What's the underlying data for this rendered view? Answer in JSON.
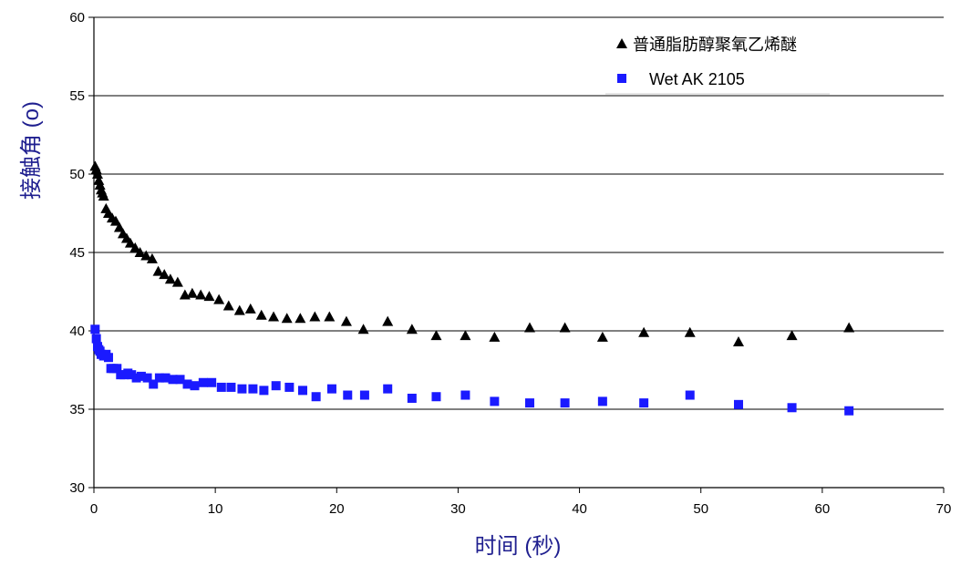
{
  "chart_data": {
    "type": "scatter",
    "title": "",
    "xlabel": "时间 (秒)",
    "ylabel": "接触角 (o)",
    "xlim": [
      0,
      70
    ],
    "ylim": [
      30,
      60
    ],
    "x_ticks": [
      "0",
      "10",
      "20",
      "30",
      "40",
      "50",
      "60",
      "70"
    ],
    "y_ticks": [
      "30",
      "35",
      "40",
      "45",
      "50",
      "55",
      "60"
    ],
    "grid": "horizontal",
    "legend_position": "top-right",
    "series": [
      {
        "name": "普通脂肪醇聚氧乙烯醚",
        "marker": "triangle",
        "color": "#000000",
        "x": [
          0.1,
          0.2,
          0.3,
          0.4,
          0.5,
          0.6,
          0.7,
          0.8,
          1.0,
          1.2,
          1.5,
          1.8,
          2.1,
          2.4,
          2.7,
          3.0,
          3.4,
          3.8,
          4.3,
          4.8,
          5.3,
          5.8,
          6.3,
          6.9,
          7.5,
          8.1,
          8.8,
          9.5,
          10.3,
          11.1,
          12.0,
          12.9,
          13.8,
          14.8,
          15.9,
          17.0,
          18.2,
          19.4,
          20.8,
          22.2,
          24.2,
          26.2,
          28.2,
          30.6,
          33.0,
          35.9,
          38.8,
          41.9,
          45.3,
          49.1,
          53.1,
          57.5,
          62.2
        ],
        "y": [
          50.5,
          50.3,
          50.0,
          49.6,
          49.3,
          49.0,
          48.8,
          48.6,
          47.8,
          47.5,
          47.2,
          47.0,
          46.6,
          46.2,
          45.9,
          45.6,
          45.3,
          45.0,
          44.8,
          44.6,
          43.8,
          43.6,
          43.3,
          43.1,
          42.3,
          42.4,
          42.3,
          42.2,
          42.0,
          41.6,
          41.3,
          41.4,
          41.0,
          40.9,
          40.8,
          40.8,
          40.9,
          40.9,
          40.6,
          40.1,
          40.6,
          40.1,
          39.7,
          39.7,
          39.6,
          40.2,
          40.2,
          39.6,
          39.9,
          39.9,
          39.3,
          39.7,
          40.2
        ]
      },
      {
        "name": "Wet AK 2105",
        "marker": "square",
        "color": "#1a1aff",
        "x": [
          0.1,
          0.2,
          0.3,
          0.4,
          0.5,
          0.6,
          0.8,
          1.0,
          1.2,
          1.4,
          1.6,
          1.9,
          2.2,
          2.5,
          2.8,
          3.1,
          3.5,
          3.9,
          4.4,
          4.9,
          5.4,
          5.9,
          6.5,
          7.1,
          7.7,
          8.3,
          9.0,
          9.7,
          10.5,
          11.3,
          12.2,
          13.1,
          14.0,
          15.0,
          16.1,
          17.2,
          18.3,
          19.6,
          20.9,
          22.3,
          24.2,
          26.2,
          28.2,
          30.6,
          33.0,
          35.9,
          38.8,
          41.9,
          45.3,
          49.1,
          53.1,
          57.5,
          62.2
        ],
        "y": [
          40.1,
          39.5,
          39.0,
          38.8,
          38.7,
          38.5,
          38.4,
          38.5,
          38.3,
          37.6,
          37.6,
          37.6,
          37.2,
          37.2,
          37.3,
          37.2,
          37.0,
          37.1,
          37.0,
          36.6,
          37.0,
          37.0,
          36.9,
          36.9,
          36.6,
          36.5,
          36.7,
          36.7,
          36.4,
          36.4,
          36.3,
          36.3,
          36.2,
          36.5,
          36.4,
          36.2,
          35.8,
          36.3,
          35.9,
          35.9,
          36.3,
          35.7,
          35.8,
          35.9,
          35.5,
          35.4,
          35.4,
          35.5,
          35.4,
          35.9,
          35.3,
          35.1,
          34.9
        ]
      }
    ]
  }
}
